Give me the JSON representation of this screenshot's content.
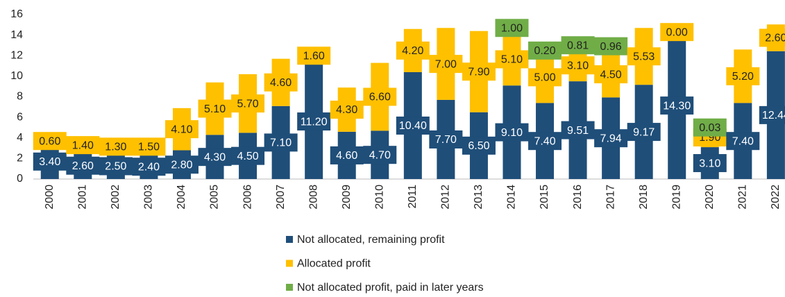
{
  "chart_data": {
    "type": "bar",
    "stacked": true,
    "categories": [
      "2000",
      "2001",
      "2002",
      "2003",
      "2004",
      "2005",
      "2006",
      "2007",
      "2008",
      "2009",
      "2010",
      "2011",
      "2012",
      "2013",
      "2014",
      "2015",
      "2016",
      "2017",
      "2018",
      "2019",
      "2020",
      "2021",
      "2022"
    ],
    "series": [
      {
        "name": "Not allocated, remaining profit",
        "color": "#1f4e79",
        "values": [
          3.4,
          2.6,
          2.5,
          2.4,
          2.8,
          4.3,
          4.5,
          7.1,
          11.2,
          4.6,
          4.7,
          10.4,
          7.7,
          6.5,
          9.1,
          7.4,
          9.51,
          7.94,
          9.17,
          14.3,
          3.1,
          7.4,
          12.44
        ],
        "value_labels": [
          "3.40",
          "2.60",
          "2.50",
          "2.40",
          "2.80",
          "4.30",
          "4.50",
          "7.10",
          "11.20",
          "4.60",
          "4.70",
          "10.40",
          "7.70",
          "6.50",
          "9.10",
          "7.40",
          "9.51",
          "7.94",
          "9.17",
          "14.30",
          "3.10",
          "7.40",
          "12.44"
        ]
      },
      {
        "name": "Allocated profit",
        "color": "#ffc000",
        "values": [
          0.6,
          1.4,
          1.3,
          1.5,
          4.1,
          5.1,
          5.7,
          4.6,
          1.6,
          4.3,
          6.6,
          4.2,
          7.0,
          7.9,
          5.1,
          5.0,
          3.1,
          4.5,
          5.53,
          0,
          1.9,
          5.2,
          2.6
        ],
        "value_labels": [
          "0.60",
          "1.40",
          "1.30",
          "1.50",
          "4.10",
          "5.10",
          "5.70",
          "4.60",
          "1.60",
          "4.30",
          "6.60",
          "4.20",
          "7.00",
          "7.90",
          "5.10",
          "5.00",
          "3.10",
          "4.50",
          "5.53",
          "0.00",
          "1.90",
          "5.20",
          "2.60"
        ]
      },
      {
        "name": "Not allocated profit, paid in later years",
        "color": "#70ad47",
        "values": [
          null,
          null,
          null,
          null,
          null,
          null,
          null,
          null,
          null,
          null,
          null,
          null,
          null,
          null,
          1.0,
          0.2,
          0.81,
          0.96,
          null,
          null,
          0.03,
          null,
          null
        ],
        "value_labels": [
          null,
          null,
          null,
          null,
          null,
          null,
          null,
          null,
          null,
          null,
          null,
          null,
          null,
          null,
          "1.00",
          "0.20",
          "0.81",
          "0.96",
          null,
          null,
          "0.03",
          null,
          null
        ]
      }
    ],
    "ylim": [
      0,
      16
    ],
    "yticks": [
      0,
      2,
      4,
      6,
      8,
      10,
      12,
      14,
      16
    ],
    "grid": false,
    "legend": "bottom"
  }
}
